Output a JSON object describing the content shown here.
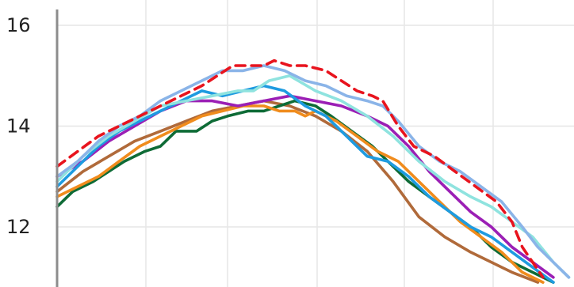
{
  "chart_data": {
    "type": "line",
    "title": "",
    "xlabel": "",
    "ylabel": "",
    "y_ticks": [
      12,
      14,
      16
    ],
    "ylim": [
      10.9,
      16.3
    ],
    "xlim": [
      0,
      100
    ],
    "grid": true,
    "series": [
      {
        "color": "#b06a3a",
        "points": [
          [
            0,
            12.7
          ],
          [
            5,
            13.1
          ],
          [
            10,
            13.4
          ],
          [
            15,
            13.7
          ],
          [
            20,
            13.9
          ],
          [
            25,
            14.1
          ],
          [
            30,
            14.3
          ],
          [
            35,
            14.4
          ],
          [
            40,
            14.5
          ],
          [
            45,
            14.4
          ],
          [
            50,
            14.2
          ],
          [
            55,
            13.9
          ],
          [
            60,
            13.5
          ],
          [
            65,
            12.9
          ],
          [
            70,
            12.2
          ],
          [
            75,
            11.8
          ],
          [
            80,
            11.5
          ],
          [
            84,
            11.3
          ],
          [
            88,
            11.1
          ],
          [
            93,
            10.9
          ]
        ]
      },
      {
        "color": "#0e6b36",
        "points": [
          [
            0,
            12.4
          ],
          [
            3,
            12.7
          ],
          [
            7,
            12.9
          ],
          [
            10,
            13.1
          ],
          [
            13,
            13.3
          ],
          [
            17,
            13.5
          ],
          [
            20,
            13.6
          ],
          [
            23,
            13.9
          ],
          [
            27,
            13.9
          ],
          [
            30,
            14.1
          ],
          [
            33,
            14.2
          ],
          [
            37,
            14.3
          ],
          [
            40,
            14.3
          ],
          [
            43,
            14.4
          ],
          [
            46,
            14.5
          ],
          [
            50,
            14.4
          ],
          [
            53,
            14.2
          ],
          [
            57,
            13.9
          ],
          [
            61,
            13.6
          ],
          [
            65,
            13.2
          ],
          [
            68,
            12.9
          ],
          [
            72,
            12.6
          ],
          [
            76,
            12.3
          ],
          [
            80,
            12.0
          ],
          [
            84,
            11.6
          ],
          [
            88,
            11.3
          ],
          [
            92,
            11.1
          ],
          [
            96,
            10.9
          ]
        ]
      },
      {
        "color": "#f08c1d",
        "points": [
          [
            0,
            12.6
          ],
          [
            4,
            12.8
          ],
          [
            8,
            13.0
          ],
          [
            12,
            13.3
          ],
          [
            16,
            13.6
          ],
          [
            20,
            13.8
          ],
          [
            24,
            14.0
          ],
          [
            28,
            14.2
          ],
          [
            32,
            14.3
          ],
          [
            36,
            14.4
          ],
          [
            40,
            14.4
          ],
          [
            43,
            14.3
          ],
          [
            46,
            14.3
          ],
          [
            48,
            14.2
          ],
          [
            50,
            14.3
          ],
          [
            54,
            14.1
          ],
          [
            58,
            13.8
          ],
          [
            62,
            13.5
          ],
          [
            66,
            13.3
          ],
          [
            70,
            12.9
          ],
          [
            74,
            12.5
          ],
          [
            78,
            12.1
          ],
          [
            82,
            11.8
          ],
          [
            86,
            11.5
          ],
          [
            90,
            11.1
          ],
          [
            94,
            10.9
          ]
        ]
      },
      {
        "color": "#9b1fb5",
        "points": [
          [
            0,
            13.0
          ],
          [
            5,
            13.3
          ],
          [
            10,
            13.7
          ],
          [
            15,
            14.0
          ],
          [
            20,
            14.3
          ],
          [
            25,
            14.5
          ],
          [
            30,
            14.5
          ],
          [
            35,
            14.4
          ],
          [
            40,
            14.5
          ],
          [
            45,
            14.6
          ],
          [
            50,
            14.5
          ],
          [
            55,
            14.4
          ],
          [
            60,
            14.2
          ],
          [
            64,
            14.0
          ],
          [
            68,
            13.6
          ],
          [
            72,
            13.1
          ],
          [
            76,
            12.7
          ],
          [
            80,
            12.3
          ],
          [
            84,
            12.0
          ],
          [
            88,
            11.6
          ],
          [
            92,
            11.3
          ],
          [
            96,
            11.0
          ]
        ]
      },
      {
        "color": "#1e9be0",
        "points": [
          [
            0,
            12.8
          ],
          [
            4,
            13.2
          ],
          [
            8,
            13.6
          ],
          [
            12,
            13.9
          ],
          [
            16,
            14.1
          ],
          [
            20,
            14.3
          ],
          [
            24,
            14.5
          ],
          [
            28,
            14.7
          ],
          [
            32,
            14.6
          ],
          [
            36,
            14.7
          ],
          [
            40,
            14.8
          ],
          [
            44,
            14.7
          ],
          [
            48,
            14.4
          ],
          [
            52,
            14.2
          ],
          [
            56,
            13.8
          ],
          [
            60,
            13.4
          ],
          [
            64,
            13.3
          ],
          [
            68,
            13.0
          ],
          [
            72,
            12.6
          ],
          [
            76,
            12.3
          ],
          [
            80,
            12.0
          ],
          [
            84,
            11.8
          ],
          [
            88,
            11.5
          ],
          [
            92,
            11.2
          ],
          [
            96,
            10.9
          ]
        ]
      },
      {
        "color": "#8fe3df",
        "points": [
          [
            0,
            12.9
          ],
          [
            5,
            13.4
          ],
          [
            10,
            13.8
          ],
          [
            15,
            14.1
          ],
          [
            20,
            14.4
          ],
          [
            25,
            14.5
          ],
          [
            30,
            14.6
          ],
          [
            35,
            14.7
          ],
          [
            38,
            14.7
          ],
          [
            41,
            14.9
          ],
          [
            45,
            15.0
          ],
          [
            50,
            14.7
          ],
          [
            55,
            14.5
          ],
          [
            60,
            14.2
          ],
          [
            65,
            13.8
          ],
          [
            70,
            13.3
          ],
          [
            75,
            12.9
          ],
          [
            80,
            12.6
          ],
          [
            84,
            12.4
          ],
          [
            88,
            12.1
          ],
          [
            92,
            11.8
          ],
          [
            96,
            11.3
          ],
          [
            99,
            11.0
          ]
        ]
      },
      {
        "color": "#8ab4e8",
        "points": [
          [
            0,
            13.0
          ],
          [
            4,
            13.3
          ],
          [
            8,
            13.7
          ],
          [
            12,
            14.0
          ],
          [
            16,
            14.2
          ],
          [
            20,
            14.5
          ],
          [
            24,
            14.7
          ],
          [
            28,
            14.9
          ],
          [
            30,
            15.0
          ],
          [
            32,
            15.1
          ],
          [
            36,
            15.1
          ],
          [
            40,
            15.2
          ],
          [
            44,
            15.1
          ],
          [
            48,
            14.9
          ],
          [
            52,
            14.8
          ],
          [
            56,
            14.6
          ],
          [
            60,
            14.5
          ],
          [
            63,
            14.4
          ],
          [
            66,
            14.1
          ],
          [
            70,
            13.6
          ],
          [
            74,
            13.3
          ],
          [
            78,
            13.1
          ],
          [
            82,
            12.8
          ],
          [
            86,
            12.5
          ],
          [
            90,
            12.0
          ],
          [
            93,
            11.6
          ],
          [
            96,
            11.3
          ],
          [
            99,
            11.0
          ]
        ]
      },
      {
        "color": "#e8141e",
        "dashed": true,
        "points": [
          [
            0,
            13.2
          ],
          [
            4,
            13.5
          ],
          [
            8,
            13.8
          ],
          [
            12,
            14.0
          ],
          [
            16,
            14.2
          ],
          [
            20,
            14.4
          ],
          [
            24,
            14.6
          ],
          [
            28,
            14.8
          ],
          [
            31,
            15.0
          ],
          [
            34,
            15.2
          ],
          [
            37,
            15.2
          ],
          [
            40,
            15.2
          ],
          [
            42,
            15.3
          ],
          [
            45,
            15.2
          ],
          [
            48,
            15.2
          ],
          [
            52,
            15.1
          ],
          [
            55,
            14.9
          ],
          [
            58,
            14.7
          ],
          [
            61,
            14.6
          ],
          [
            63,
            14.5
          ],
          [
            66,
            14.0
          ],
          [
            69,
            13.6
          ],
          [
            73,
            13.4
          ],
          [
            77,
            13.1
          ],
          [
            81,
            12.8
          ],
          [
            85,
            12.5
          ],
          [
            88,
            12.1
          ],
          [
            90,
            11.6
          ],
          [
            92,
            11.3
          ],
          [
            94,
            11.0
          ]
        ]
      }
    ]
  }
}
